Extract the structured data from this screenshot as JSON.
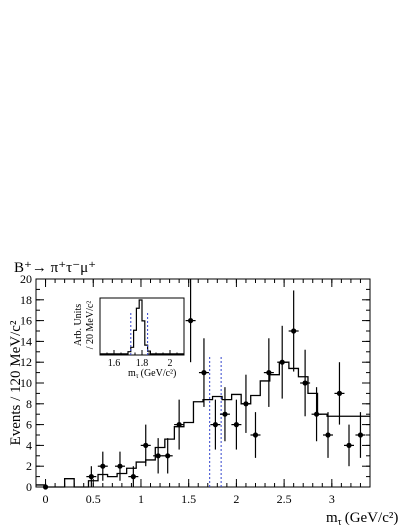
{
  "chart_data": {
    "type": "scatter",
    "title": "B⁺→ π⁺τ⁻μ⁺",
    "xlabel": "m",
    "xlabel_sub": "τ",
    "xlabel_unit": "(GeV/c²)",
    "ylabel": "Events / 120 MeV/c²",
    "xlim": [
      -0.1,
      3.4
    ],
    "ylim": [
      0,
      20
    ],
    "x_ticks": [
      "0",
      "0.5",
      "1",
      "1.5",
      "2",
      "2.5",
      "3"
    ],
    "y_ticks": [
      "0",
      "2",
      "4",
      "6",
      "8",
      "10",
      "12",
      "14",
      "16",
      "18",
      "20"
    ],
    "data_points": [
      {
        "x": 0.0,
        "y": 0,
        "err": 0
      },
      {
        "x": 0.48,
        "y": 1,
        "err": 1
      },
      {
        "x": 0.6,
        "y": 2,
        "err": 1.4
      },
      {
        "x": 0.78,
        "y": 2,
        "err": 1.4
      },
      {
        "x": 0.92,
        "y": 1,
        "err": 1
      },
      {
        "x": 1.05,
        "y": 4,
        "err": 2
      },
      {
        "x": 1.18,
        "y": 3,
        "err": 1.7
      },
      {
        "x": 1.28,
        "y": 3,
        "err": 1.7
      },
      {
        "x": 1.4,
        "y": 6,
        "err": 2.4
      },
      {
        "x": 1.52,
        "y": 16,
        "err": 4
      },
      {
        "x": 1.66,
        "y": 11,
        "err": 3.3
      },
      {
        "x": 1.78,
        "y": 6,
        "err": 2.4
      },
      {
        "x": 1.88,
        "y": 7,
        "err": 2.6
      },
      {
        "x": 2.0,
        "y": 6,
        "err": 2.4
      },
      {
        "x": 2.1,
        "y": 8,
        "err": 2.8
      },
      {
        "x": 2.2,
        "y": 5,
        "err": 2.2
      },
      {
        "x": 2.34,
        "y": 11,
        "err": 3.3
      },
      {
        "x": 2.48,
        "y": 12,
        "err": 3.5
      },
      {
        "x": 2.6,
        "y": 15,
        "err": 3.9
      },
      {
        "x": 2.72,
        "y": 10,
        "err": 3.2
      },
      {
        "x": 2.84,
        "y": 7,
        "err": 2.6
      },
      {
        "x": 2.96,
        "y": 5,
        "err": 2.2
      },
      {
        "x": 3.08,
        "y": 9,
        "err": 3
      },
      {
        "x": 3.18,
        "y": 4,
        "err": 2
      },
      {
        "x": 3.3,
        "y": 5,
        "err": 2.2
      }
    ],
    "model_histogram": [
      {
        "x0": -0.1,
        "x1": 0.0,
        "y": 0.2
      },
      {
        "x0": 0.0,
        "x1": 0.2,
        "y": 0.0
      },
      {
        "x0": 0.2,
        "x1": 0.3,
        "y": 0.8
      },
      {
        "x0": 0.3,
        "x1": 0.45,
        "y": 0.0
      },
      {
        "x0": 0.45,
        "x1": 0.55,
        "y": 0.6
      },
      {
        "x0": 0.55,
        "x1": 0.65,
        "y": 1.2
      },
      {
        "x0": 0.65,
        "x1": 0.75,
        "y": 1.0
      },
      {
        "x0": 0.75,
        "x1": 0.85,
        "y": 1.3
      },
      {
        "x0": 0.85,
        "x1": 0.95,
        "y": 1.8
      },
      {
        "x0": 0.95,
        "x1": 1.05,
        "y": 2.4
      },
      {
        "x0": 1.05,
        "x1": 1.15,
        "y": 2.6
      },
      {
        "x0": 1.15,
        "x1": 1.25,
        "y": 3.8
      },
      {
        "x0": 1.25,
        "x1": 1.35,
        "y": 4.6
      },
      {
        "x0": 1.35,
        "x1": 1.45,
        "y": 5.8
      },
      {
        "x0": 1.45,
        "x1": 1.55,
        "y": 6.2
      },
      {
        "x0": 1.55,
        "x1": 1.65,
        "y": 8.2
      },
      {
        "x0": 1.65,
        "x1": 1.75,
        "y": 8.4
      },
      {
        "x0": 1.75,
        "x1": 1.85,
        "y": 8.7
      },
      {
        "x0": 1.85,
        "x1": 1.95,
        "y": 8.4
      },
      {
        "x0": 1.95,
        "x1": 2.05,
        "y": 8.9
      },
      {
        "x0": 2.05,
        "x1": 2.15,
        "y": 8.0
      },
      {
        "x0": 2.15,
        "x1": 2.25,
        "y": 8.8
      },
      {
        "x0": 2.25,
        "x1": 2.35,
        "y": 10.2
      },
      {
        "x0": 2.35,
        "x1": 2.45,
        "y": 10.8
      },
      {
        "x0": 2.45,
        "x1": 2.55,
        "y": 12.0
      },
      {
        "x0": 2.55,
        "x1": 2.65,
        "y": 11.4
      },
      {
        "x0": 2.65,
        "x1": 2.75,
        "y": 10.6
      },
      {
        "x0": 2.75,
        "x1": 2.85,
        "y": 9.0
      },
      {
        "x0": 2.85,
        "x1": 2.95,
        "y": 7.0
      },
      {
        "x0": 2.95,
        "x1": 3.05,
        "y": 6.8
      },
      {
        "x0": 3.05,
        "x1": 3.15,
        "y": 6.8
      },
      {
        "x0": 3.15,
        "x1": 3.4,
        "y": 6.8
      }
    ],
    "signal_window": {
      "low": 1.72,
      "high": 1.84,
      "color": "#3344cc"
    },
    "inset": {
      "ylabel_line1": "Arb. Units",
      "ylabel_line2": "/ 20 MeV/c²",
      "xlabel": "m",
      "xlabel_sub": "τ",
      "xlabel_unit": "(GeV/c²)",
      "xlim": [
        1.5,
        2.1
      ],
      "x_ticks": [
        "1.6",
        "1.8",
        "2"
      ],
      "signal_histogram": [
        {
          "x0": 1.5,
          "x1": 1.7,
          "y": 0.02
        },
        {
          "x0": 1.7,
          "x1": 1.72,
          "y": 0.06
        },
        {
          "x0": 1.72,
          "x1": 1.74,
          "y": 0.14
        },
        {
          "x0": 1.74,
          "x1": 1.76,
          "y": 0.45
        },
        {
          "x0": 1.76,
          "x1": 1.78,
          "y": 0.85
        },
        {
          "x0": 1.78,
          "x1": 1.8,
          "y": 1.0
        },
        {
          "x0": 1.8,
          "x1": 1.82,
          "y": 0.62
        },
        {
          "x0": 1.82,
          "x1": 1.84,
          "y": 0.18
        },
        {
          "x0": 1.84,
          "x1": 1.86,
          "y": 0.07
        },
        {
          "x0": 1.86,
          "x1": 2.1,
          "y": 0.02
        }
      ]
    },
    "colors": {
      "data": "#000000",
      "model": "#000000",
      "window": "#3344cc"
    }
  }
}
